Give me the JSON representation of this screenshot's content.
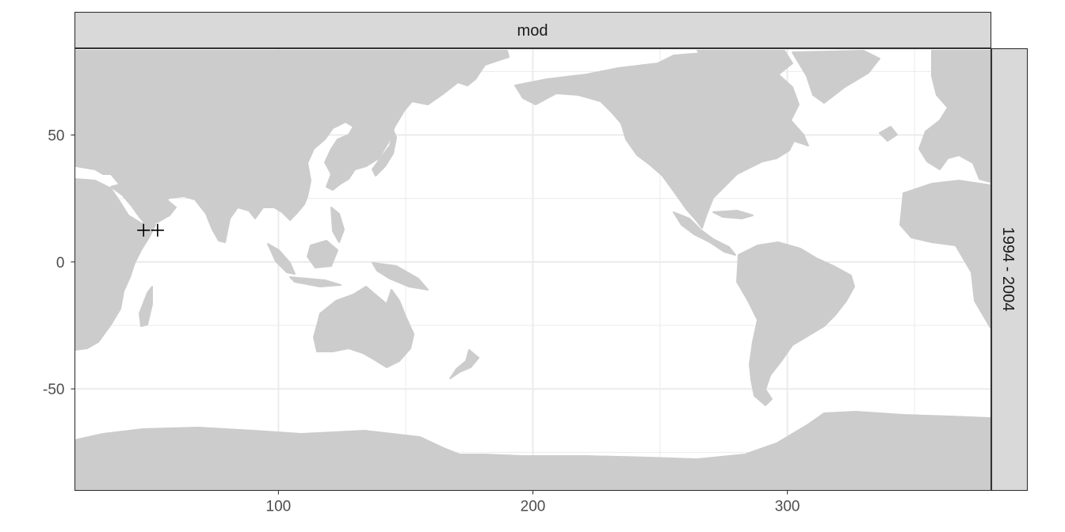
{
  "facet": {
    "column_strip": "mod",
    "row_strip": "1994 - 2004"
  },
  "chart_data": {
    "type": "map",
    "x": {
      "lim": [
        20,
        380
      ],
      "breaks": [
        100,
        200,
        300
      ],
      "labels": [
        "100",
        "200",
        "300"
      ],
      "label": ""
    },
    "y": {
      "lim": [
        -90,
        84
      ],
      "breaks": [
        50,
        0,
        -50
      ],
      "labels": [
        "50",
        "0",
        "-50"
      ],
      "label": ""
    },
    "grid": true,
    "land_color": "#cccccc",
    "points": [
      {
        "lon": 47,
        "lat": 12.5,
        "shape": "plus"
      },
      {
        "lon": 52.5,
        "lat": 12.5,
        "shape": "plus"
      }
    ]
  }
}
